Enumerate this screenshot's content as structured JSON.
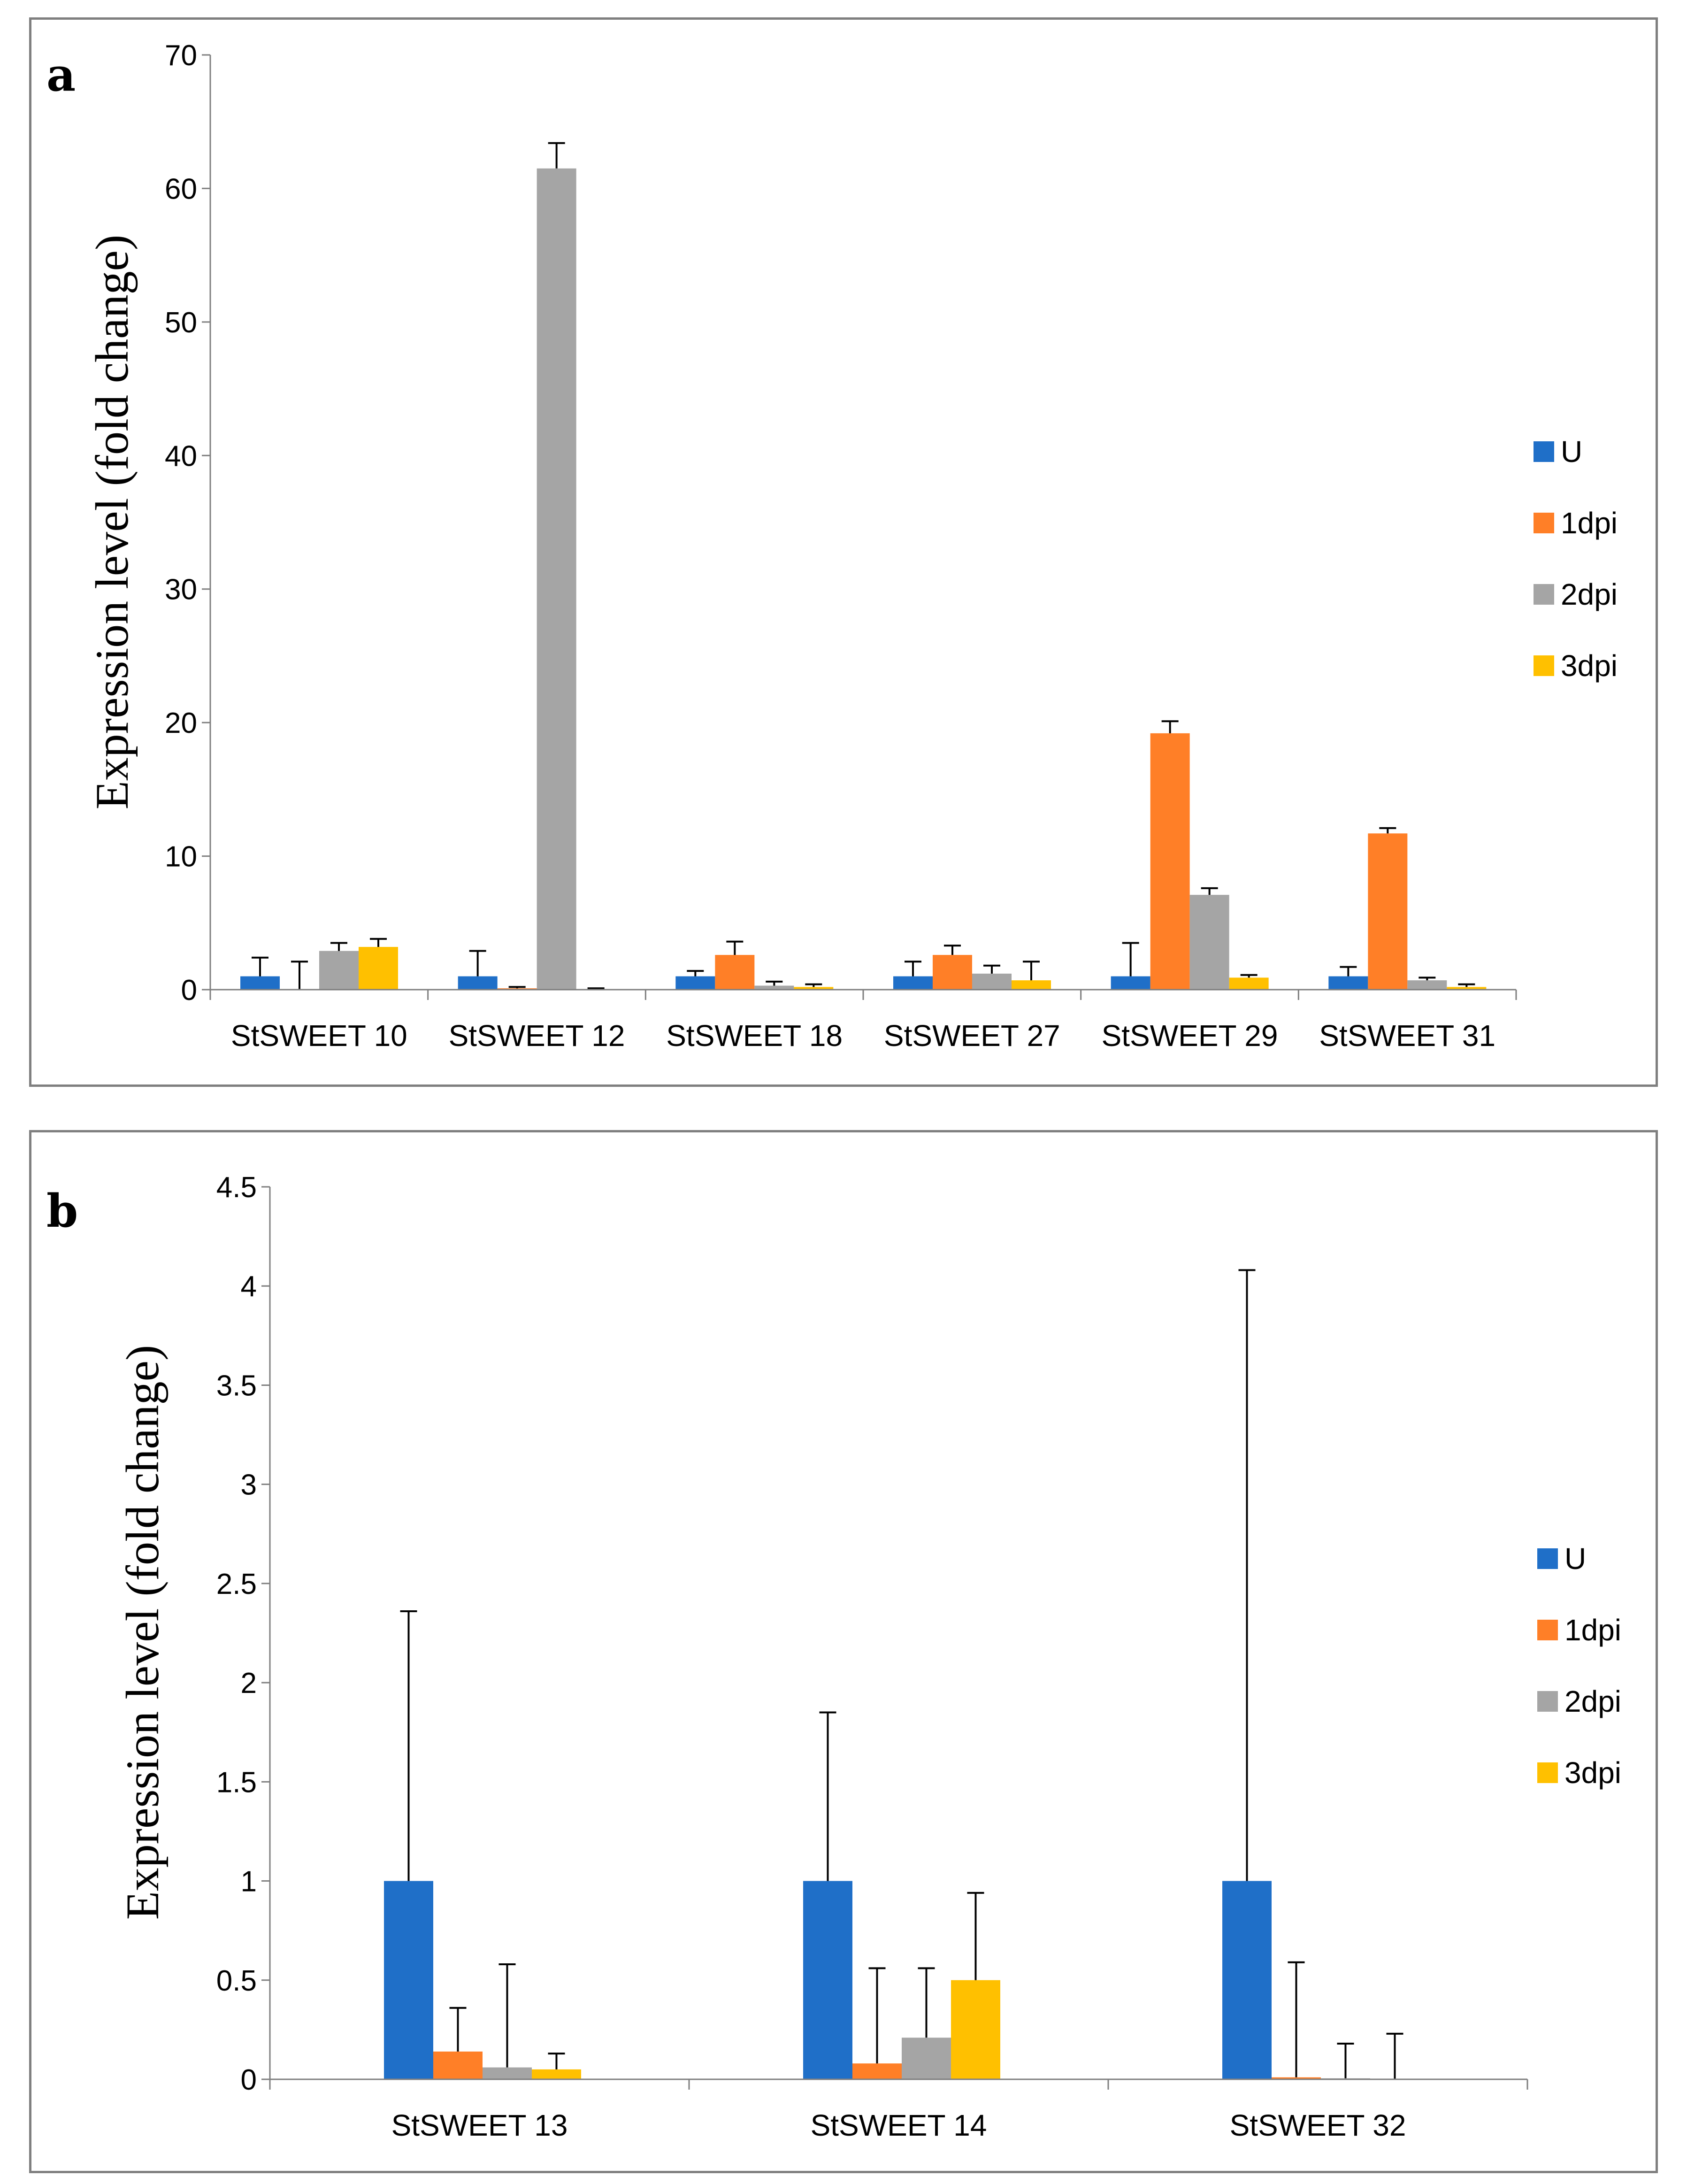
{
  "panels": [
    {
      "letter": "a"
    },
    {
      "letter": "b"
    }
  ],
  "chart_data": [
    {
      "type": "bar",
      "panel": "a",
      "title": "",
      "xlabel": "",
      "ylabel": "Expression level (fold change)",
      "ylim": [
        0,
        70
      ],
      "yticks": [
        "0",
        "10",
        "20",
        "30",
        "40",
        "50",
        "60",
        "70"
      ],
      "grid": false,
      "legend_position": "right",
      "categories": [
        "StSWEET 10",
        "StSWEET 12",
        "StSWEET 18",
        "StSWEET 27",
        "StSWEET 29",
        "StSWEET 31"
      ],
      "series": [
        {
          "name": "U",
          "color": "#1f6fc8",
          "values": [
            1.0,
            1.0,
            1.0,
            1.0,
            1.0,
            1.0
          ],
          "errors": [
            1.4,
            1.9,
            0.4,
            1.1,
            2.5,
            0.7
          ]
        },
        {
          "name": "1dpi",
          "color": "#ff7f27",
          "values": [
            0.0,
            0.1,
            2.6,
            2.6,
            19.2,
            11.7
          ],
          "errors": [
            2.1,
            0.1,
            1.0,
            0.7,
            0.9,
            0.4
          ]
        },
        {
          "name": "2dpi",
          "color": "#a5a5a5",
          "values": [
            2.9,
            61.5,
            0.3,
            1.2,
            7.1,
            0.7
          ],
          "errors": [
            0.6,
            1.9,
            0.3,
            0.6,
            0.5,
            0.2
          ]
        },
        {
          "name": "3dpi",
          "color": "#ffc000",
          "values": [
            3.2,
            0.05,
            0.2,
            0.7,
            0.9,
            0.2
          ],
          "errors": [
            0.6,
            0.05,
            0.2,
            1.4,
            0.2,
            0.2
          ]
        }
      ]
    },
    {
      "type": "bar",
      "panel": "b",
      "title": "",
      "xlabel": "",
      "ylabel": "Expression level (fold change)",
      "ylim": [
        0,
        4.5
      ],
      "yticks": [
        "0",
        "0.5",
        "1",
        "1.5",
        "2",
        "2.5",
        "3",
        "3.5",
        "4",
        "4.5"
      ],
      "grid": false,
      "legend_position": "right",
      "categories": [
        "StSWEET 13",
        "StSWEET 14",
        "StSWEET 32"
      ],
      "series": [
        {
          "name": "U",
          "color": "#1f6fc8",
          "values": [
            1.0,
            1.0,
            1.0
          ],
          "errors": [
            1.36,
            0.85,
            3.08
          ]
        },
        {
          "name": "1dpi",
          "color": "#ff7f27",
          "values": [
            0.14,
            0.08,
            0.01
          ],
          "errors": [
            0.22,
            0.48,
            0.58
          ]
        },
        {
          "name": "2dpi",
          "color": "#a5a5a5",
          "values": [
            0.06,
            0.21,
            0.005
          ],
          "errors": [
            0.52,
            0.35,
            0.175
          ]
        },
        {
          "name": "3dpi",
          "color": "#ffc000",
          "values": [
            0.05,
            0.5,
            0.0
          ],
          "errors": [
            0.08,
            0.44,
            0.23
          ]
        }
      ]
    }
  ]
}
